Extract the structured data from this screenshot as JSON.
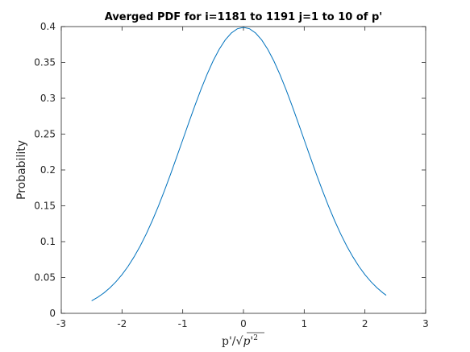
{
  "chart_data": {
    "type": "line",
    "title": "Averged PDF for i=1181 to 1191 j=1 to 10 of p'",
    "xlabel": "p'/√p'²",
    "xlabel_parts": {
      "prefix": "p'/√",
      "radicand": "p'",
      "exponent": "2"
    },
    "ylabel": "Probability",
    "xlim": [
      -3,
      3
    ],
    "ylim": [
      0,
      0.4
    ],
    "xticks": [
      -3,
      -2,
      -1,
      0,
      1,
      2,
      3
    ],
    "xtick_labels": [
      "-3",
      "-2",
      "-1",
      "0",
      "1",
      "2",
      "3"
    ],
    "yticks": [
      0,
      0.05,
      0.1,
      0.15,
      0.2,
      0.25,
      0.3,
      0.35,
      0.4
    ],
    "ytick_labels": [
      "0",
      "0.05",
      "0.1",
      "0.15",
      "0.2",
      "0.25",
      "0.3",
      "0.35",
      "0.4"
    ],
    "grid": false,
    "series": [
      {
        "color": "#0072bd",
        "x": [
          -2.5,
          -2.4,
          -2.3,
          -2.2,
          -2.1,
          -2.0,
          -1.9,
          -1.8,
          -1.7,
          -1.6,
          -1.5,
          -1.4,
          -1.3,
          -1.2,
          -1.1,
          -1.0,
          -0.9,
          -0.8,
          -0.7,
          -0.6,
          -0.5,
          -0.4,
          -0.3,
          -0.2,
          -0.1,
          0.0,
          0.1,
          0.2,
          0.3,
          0.4,
          0.5,
          0.6,
          0.7,
          0.8,
          0.9,
          1.0,
          1.1,
          1.2,
          1.3,
          1.4,
          1.5,
          1.6,
          1.7,
          1.8,
          1.9,
          2.0,
          2.1,
          2.2,
          2.3,
          2.35
        ],
        "y": [
          0.0175,
          0.0224,
          0.0283,
          0.0355,
          0.044,
          0.054,
          0.0656,
          0.079,
          0.094,
          0.1109,
          0.1295,
          0.1497,
          0.1714,
          0.1942,
          0.2179,
          0.242,
          0.2661,
          0.2897,
          0.3123,
          0.3332,
          0.3521,
          0.3683,
          0.3814,
          0.391,
          0.397,
          0.3989,
          0.397,
          0.391,
          0.3814,
          0.3683,
          0.3521,
          0.3332,
          0.3123,
          0.2897,
          0.2661,
          0.242,
          0.2179,
          0.1942,
          0.1714,
          0.1497,
          0.1295,
          0.1109,
          0.094,
          0.079,
          0.0656,
          0.054,
          0.044,
          0.0355,
          0.0283,
          0.0252
        ]
      }
    ]
  }
}
